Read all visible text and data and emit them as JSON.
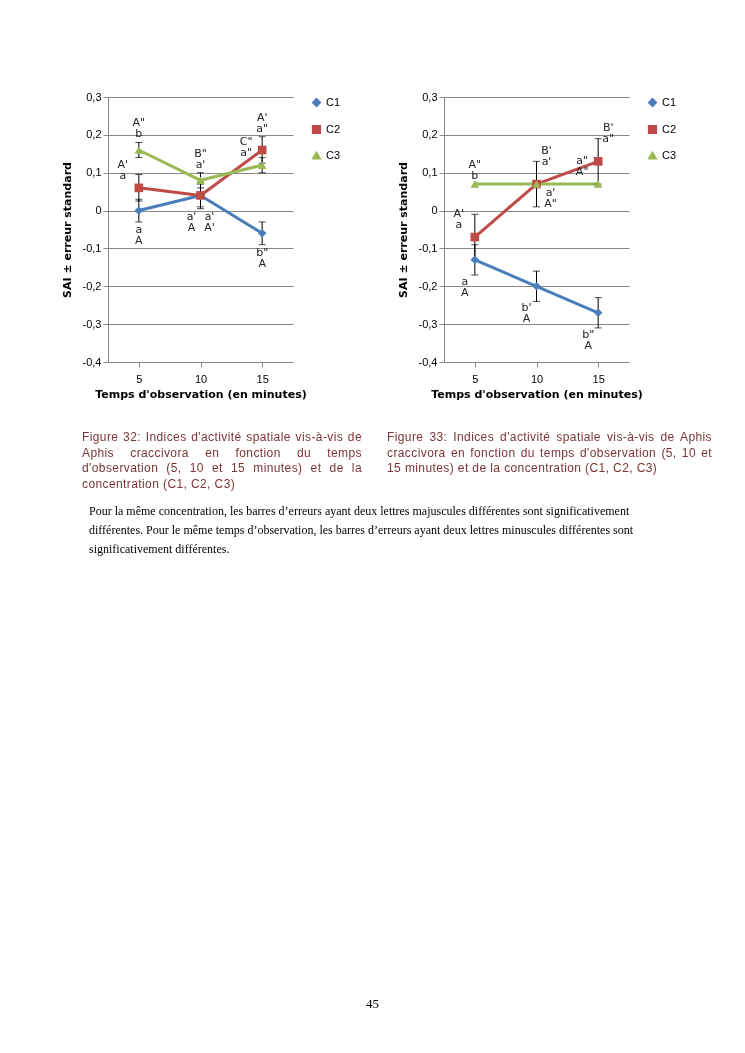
{
  "chart_data": [
    {
      "type": "line",
      "xlabel": "Temps d'observation (en minutes)",
      "ylabel": "SAI ± erreur standard",
      "x": [
        5,
        10,
        15
      ],
      "xlim": [
        2.5,
        17.5
      ],
      "xticks": [
        5,
        10,
        15
      ],
      "ylim": [
        -0.4,
        0.3
      ],
      "yticks": [
        {
          "value": -0.4,
          "label": "-0,4"
        },
        {
          "value": -0.3,
          "label": "-0,3"
        },
        {
          "value": -0.2,
          "label": "-0,2"
        },
        {
          "value": -0.1,
          "label": "-0,1"
        },
        {
          "value": 0,
          "label": "0"
        },
        {
          "value": 0.1,
          "label": "0,1"
        },
        {
          "value": 0.2,
          "label": "0,2"
        },
        {
          "value": 0.3,
          "label": "0,3"
        }
      ],
      "grid": "y",
      "legend": "right",
      "series": [
        {
          "name": "C1",
          "color": "#4a7ebb",
          "marker": "diamond",
          "values": [
            0,
            0.04,
            -0.06
          ],
          "errors": [
            0.03,
            0.03,
            0.03
          ]
        },
        {
          "name": "C2",
          "color": "#be4b48",
          "marker": "square",
          "values": [
            0.06,
            0.04,
            0.16
          ],
          "errors": [
            0.035,
            0.035,
            0.035
          ]
        },
        {
          "name": "C3",
          "color": "#98b954",
          "marker": "triangle",
          "values": [
            0.16,
            0.08,
            0.12
          ],
          "errors": [
            0.02,
            0.02,
            0.02
          ]
        }
      ],
      "annotations": [
        {
          "text": "A\"",
          "x": 5,
          "y": 0.16
        },
        {
          "text": "b",
          "x": 5,
          "y": 0.16
        },
        {
          "text": "A'",
          "x": 5,
          "y": 0.06
        },
        {
          "text": "a",
          "x": 5,
          "y": 0.06
        },
        {
          "text": "a",
          "x": 5,
          "y": 0
        },
        {
          "text": "A",
          "x": 5,
          "y": 0
        },
        {
          "text": "B\"",
          "x": 10,
          "y": 0.08
        },
        {
          "text": "a'",
          "x": 10,
          "y": 0.08
        },
        {
          "text": "a'",
          "x": 10,
          "y": 0.04
        },
        {
          "text": "A",
          "x": 10,
          "y": 0.04
        },
        {
          "text": "a'",
          "x": 10,
          "y": 0.04
        },
        {
          "text": "A'",
          "x": 10,
          "y": 0.04
        },
        {
          "text": "A'",
          "x": 15,
          "y": 0.16
        },
        {
          "text": "a\"",
          "x": 15,
          "y": 0.16
        },
        {
          "text": "C\"",
          "x": 15,
          "y": 0.12
        },
        {
          "text": "a\"",
          "x": 15,
          "y": 0.12
        },
        {
          "text": "b\"",
          "x": 15,
          "y": -0.06
        },
        {
          "text": "A",
          "x": 15,
          "y": -0.06
        },
        "Figure 32: Indices d'activité spatiale vis-à-vis de Aphis craccivora en fonction du temps d'observation (5, 10 et 15 minutes) et de la concentration (C1, C2, C3)"
      ]
    },
    {
      "type": "line",
      "xlabel": "Temps d'observation (en minutes)",
      "ylabel": "SAI ± erreur standard",
      "x": [
        5,
        10,
        15
      ],
      "xlim": [
        2.5,
        17.5
      ],
      "xticks": [
        5,
        10,
        15
      ],
      "ylim": [
        -0.4,
        0.3
      ],
      "yticks": [
        {
          "value": -0.4,
          "label": "-0,4"
        },
        {
          "value": -0.3,
          "label": "-0,3"
        },
        {
          "value": -0.2,
          "label": "-0,2"
        },
        {
          "value": -0.1,
          "label": "-0,1"
        },
        {
          "value": 0,
          "label": "0"
        },
        {
          "value": 0.1,
          "label": "0,1"
        },
        {
          "value": 0.2,
          "label": "0,2"
        },
        {
          "value": 0.3,
          "label": "0,3"
        }
      ],
      "grid": "y",
      "legend": "right",
      "series": [
        {
          "name": "C1",
          "color": "#4a7ebb",
          "marker": "diamond",
          "values": [
            -0.13,
            -0.2,
            -0.27
          ],
          "errors": [
            0.04,
            0.04,
            0.04
          ]
        },
        {
          "name": "C2",
          "color": "#be4b48",
          "marker": "square",
          "values": [
            -0.07,
            0.07,
            0.13
          ],
          "errors": [
            0.06,
            0.06,
            0.06
          ]
        },
        {
          "name": "C3",
          "color": "#98b954",
          "marker": "triangle",
          "values": [
            0.07,
            0.07,
            0.07
          ]
        }
      ],
      "annotations": [
        {
          "text": "A\"",
          "x": 5,
          "y": 0.07
        },
        {
          "text": "b",
          "x": 5,
          "y": 0.07
        },
        {
          "text": "A'",
          "x": 5,
          "y": -0.07
        },
        {
          "text": "a",
          "x": 5,
          "y": -0.07
        },
        {
          "text": "a",
          "x": 5,
          "y": -0.13
        },
        {
          "text": "A",
          "x": 5,
          "y": -0.13
        },
        {
          "text": "B'",
          "x": 10,
          "y": 0.07
        },
        {
          "text": "a'",
          "x": 10,
          "y": 0.07
        },
        {
          "text": "a'",
          "x": 10,
          "y": 0.07
        },
        {
          "text": "A\"",
          "x": 10,
          "y": 0.07
        },
        {
          "text": "b'",
          "x": 10,
          "y": -0.2
        },
        {
          "text": "A",
          "x": 10,
          "y": -0.2
        },
        {
          "text": "B'",
          "x": 15,
          "y": 0.13
        },
        {
          "text": "a\"",
          "x": 15,
          "y": 0.13
        },
        {
          "text": "a\"",
          "x": 15,
          "y": 0.07
        },
        {
          "text": "A\"",
          "x": 15,
          "y": 0.07
        },
        {
          "text": "b\"",
          "x": 15,
          "y": -0.27
        },
        {
          "text": "A",
          "x": 15,
          "y": -0.27
        },
        "Figure 33: Indices d'activité spatiale vis-à-vis de Aphis craccivora en fonction du temps d'observation (5, 10 et 15 minutes) et de la concentration (C1, C2, C3)",
        "Pour la même concentration, les barres d’erreurs ayant deux lettres majuscules différentes sont significativement différentes. Pour le même temps d’observation, les barres d’erreurs ayant deux lettres minuscules différentes sont significativement différentes.",
        "45"
      ]
    }
  ]
}
